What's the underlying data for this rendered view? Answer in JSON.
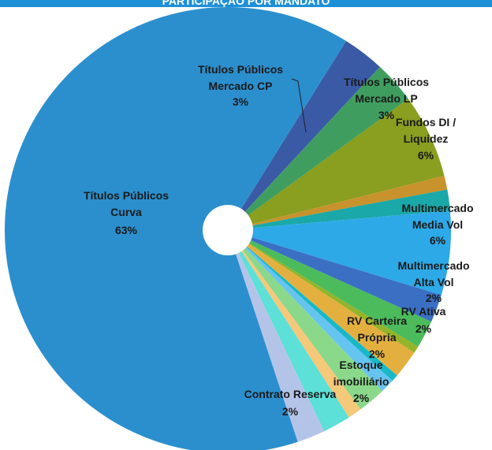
{
  "chart_data": {
    "type": "pie",
    "title": "PARTICIPAÇÃO POR MANDATO",
    "categories": [
      "Títulos Públicos Mercado CP",
      "Títulos Públicos Mercado LP",
      "Fundos DI / Liquidez",
      null,
      null,
      "Multimercado Media Vol",
      "Multimercado Alta Vol",
      "RV Ativa",
      null,
      "RV Carteira Própria",
      null,
      null,
      "Estoque imobiliário",
      null,
      "Contrato Reserva",
      null,
      "Títulos Públicos Curva"
    ],
    "values": [
      3,
      3,
      6,
      1,
      1.5,
      6,
      2,
      2,
      0.5,
      2,
      0.5,
      1,
      2,
      1,
      2,
      2,
      63
    ],
    "value_labels": [
      "3%",
      "3%",
      "6%",
      null,
      null,
      "6%",
      "2%",
      "2%",
      null,
      "2%",
      null,
      null,
      "2%",
      null,
      "2%",
      null,
      "63%"
    ],
    "colors": [
      "#3a5aa6",
      "#3f9e5f",
      "#8a9e1f",
      "#c8922c",
      "#1aa8a8",
      "#2ea9e8",
      "#3a6fc4",
      "#4cbb5c",
      "#94b42a",
      "#e3b040",
      "#18b8c8",
      "#66c4f0",
      "#8ad88a",
      "#f5c87a",
      "#5ce0d8",
      "#b4c4e8",
      "#2b8fce"
    ]
  }
}
